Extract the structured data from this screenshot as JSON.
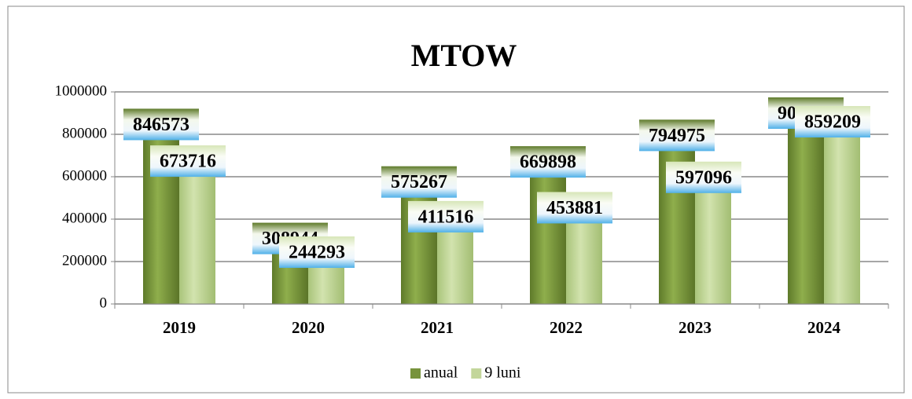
{
  "chart_data": {
    "type": "bar",
    "title": "MTOW",
    "categories": [
      "2019",
      "2020",
      "2021",
      "2022",
      "2023",
      "2024"
    ],
    "series": [
      {
        "name": "anual",
        "color": "#77933c",
        "values": [
          846573,
          308944,
          575267,
          669898,
          794975,
          900000
        ]
      },
      {
        "name": "9 luni",
        "color": "#c3d69b",
        "values": [
          673716,
          244293,
          411516,
          453881,
          597096,
          859209
        ]
      }
    ],
    "ylim": [
      0,
      1000000
    ],
    "yticks": [
      0,
      200000,
      400000,
      600000,
      800000,
      1000000
    ],
    "grid": true
  }
}
